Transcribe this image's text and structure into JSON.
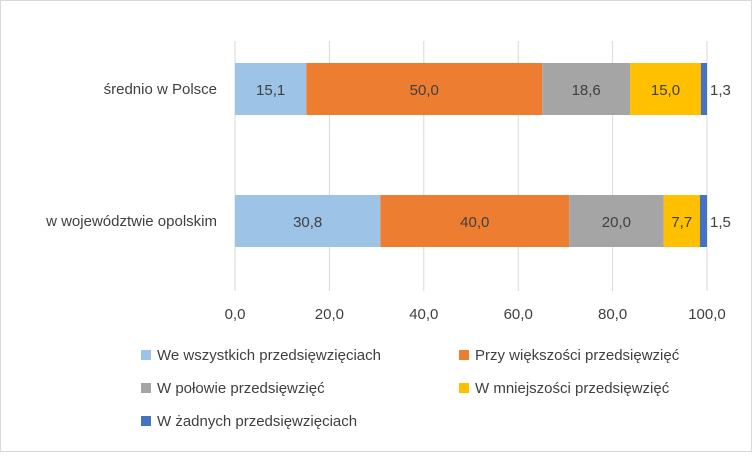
{
  "chart_data": {
    "type": "bar",
    "orientation": "horizontal",
    "stacked": true,
    "title": "",
    "xlabel": "",
    "ylabel": "",
    "categories": [
      "średnio w Polsce",
      "w województwie opolskim"
    ],
    "xlim": [
      0,
      100
    ],
    "xticks": [
      "0,0",
      "20,0",
      "40,0",
      "60,0",
      "80,0",
      "100,0"
    ],
    "grid": "vertical",
    "legend_position": "bottom",
    "series": [
      {
        "name": "We wszystkich przedsięwzięciach",
        "color": "#9DC3E6",
        "values": [
          15.1,
          30.8
        ],
        "labels": [
          "15,1",
          "30,8"
        ]
      },
      {
        "name": "Przy większości przedsięwzięć",
        "color": "#ED7D31",
        "values": [
          50.0,
          40.0
        ],
        "labels": [
          "50,0",
          "40,0"
        ]
      },
      {
        "name": "W połowie przedsięwzięć",
        "color": "#A5A5A5",
        "values": [
          18.6,
          20.0
        ],
        "labels": [
          "18,6",
          "20,0"
        ]
      },
      {
        "name": "W mniejszości przedsięwzięć",
        "color": "#FFC000",
        "values": [
          15.0,
          7.7
        ],
        "labels": [
          "15,0",
          "7,7"
        ]
      },
      {
        "name": "W żadnych przedsięwzięciach",
        "color": "#4472C4",
        "values": [
          1.3,
          1.5
        ],
        "labels": [
          "1,3",
          "1,5"
        ]
      }
    ]
  }
}
